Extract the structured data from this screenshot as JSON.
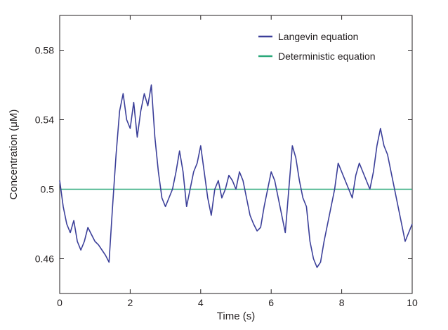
{
  "chart_data": {
    "type": "line",
    "title": "",
    "xlabel": "Time (s)",
    "ylabel": "Concentration (μM)",
    "xlim": [
      0,
      10
    ],
    "ylim": [
      0.44,
      0.6
    ],
    "x_ticks": [
      0,
      2,
      4,
      6,
      8,
      10
    ],
    "x_tick_labels": [
      "0",
      "2",
      "4",
      "6",
      "8",
      "10"
    ],
    "y_ticks": [
      0.46,
      0.5,
      0.54,
      0.58
    ],
    "y_tick_labels": [
      "0.46",
      "0.5",
      "0.54",
      "0.58"
    ],
    "grid": false,
    "legend_position": "top-right",
    "series": [
      {
        "name": "Langevin equation",
        "color": "#3b3f99",
        "x": [
          0,
          0.1,
          0.2,
          0.3,
          0.4,
          0.5,
          0.6,
          0.7,
          0.8,
          0.9,
          1.0,
          1.1,
          1.2,
          1.3,
          1.4,
          1.5,
          1.6,
          1.7,
          1.8,
          1.9,
          2.0,
          2.1,
          2.2,
          2.3,
          2.4,
          2.5,
          2.6,
          2.7,
          2.8,
          2.9,
          3.0,
          3.1,
          3.2,
          3.3,
          3.4,
          3.5,
          3.6,
          3.7,
          3.8,
          3.9,
          4.0,
          4.1,
          4.2,
          4.3,
          4.4,
          4.5,
          4.6,
          4.7,
          4.8,
          4.9,
          5.0,
          5.1,
          5.2,
          5.3,
          5.4,
          5.5,
          5.6,
          5.7,
          5.8,
          5.9,
          6.0,
          6.1,
          6.2,
          6.3,
          6.4,
          6.5,
          6.6,
          6.7,
          6.8,
          6.9,
          7.0,
          7.1,
          7.2,
          7.3,
          7.4,
          7.5,
          7.6,
          7.7,
          7.8,
          7.9,
          8.0,
          8.1,
          8.2,
          8.3,
          8.4,
          8.5,
          8.6,
          8.7,
          8.8,
          8.9,
          9.0,
          9.1,
          9.2,
          9.3,
          9.4,
          9.5,
          9.6,
          9.7,
          9.8,
          9.9,
          10.0
        ],
        "values": [
          0.505,
          0.49,
          0.48,
          0.475,
          0.482,
          0.47,
          0.465,
          0.47,
          0.478,
          0.474,
          0.47,
          0.468,
          0.465,
          0.462,
          0.458,
          0.49,
          0.52,
          0.545,
          0.555,
          0.54,
          0.535,
          0.55,
          0.53,
          0.545,
          0.555,
          0.548,
          0.56,
          0.53,
          0.51,
          0.495,
          0.49,
          0.495,
          0.5,
          0.51,
          0.522,
          0.51,
          0.49,
          0.5,
          0.51,
          0.515,
          0.525,
          0.51,
          0.495,
          0.485,
          0.5,
          0.505,
          0.495,
          0.5,
          0.508,
          0.505,
          0.5,
          0.51,
          0.505,
          0.495,
          0.485,
          0.48,
          0.476,
          0.478,
          0.49,
          0.5,
          0.51,
          0.505,
          0.495,
          0.485,
          0.475,
          0.5,
          0.525,
          0.518,
          0.505,
          0.495,
          0.49,
          0.47,
          0.46,
          0.455,
          0.458,
          0.47,
          0.48,
          0.49,
          0.5,
          0.515,
          0.51,
          0.505,
          0.5,
          0.495,
          0.508,
          0.515,
          0.51,
          0.505,
          0.5,
          0.51,
          0.525,
          0.535,
          0.525,
          0.52,
          0.51,
          0.5,
          0.49,
          0.48,
          0.47,
          0.475,
          0.48
        ]
      },
      {
        "name": "Deterministic equation",
        "color": "#2aa87a",
        "x": [
          0,
          10
        ],
        "values": [
          0.5,
          0.5
        ]
      }
    ]
  }
}
